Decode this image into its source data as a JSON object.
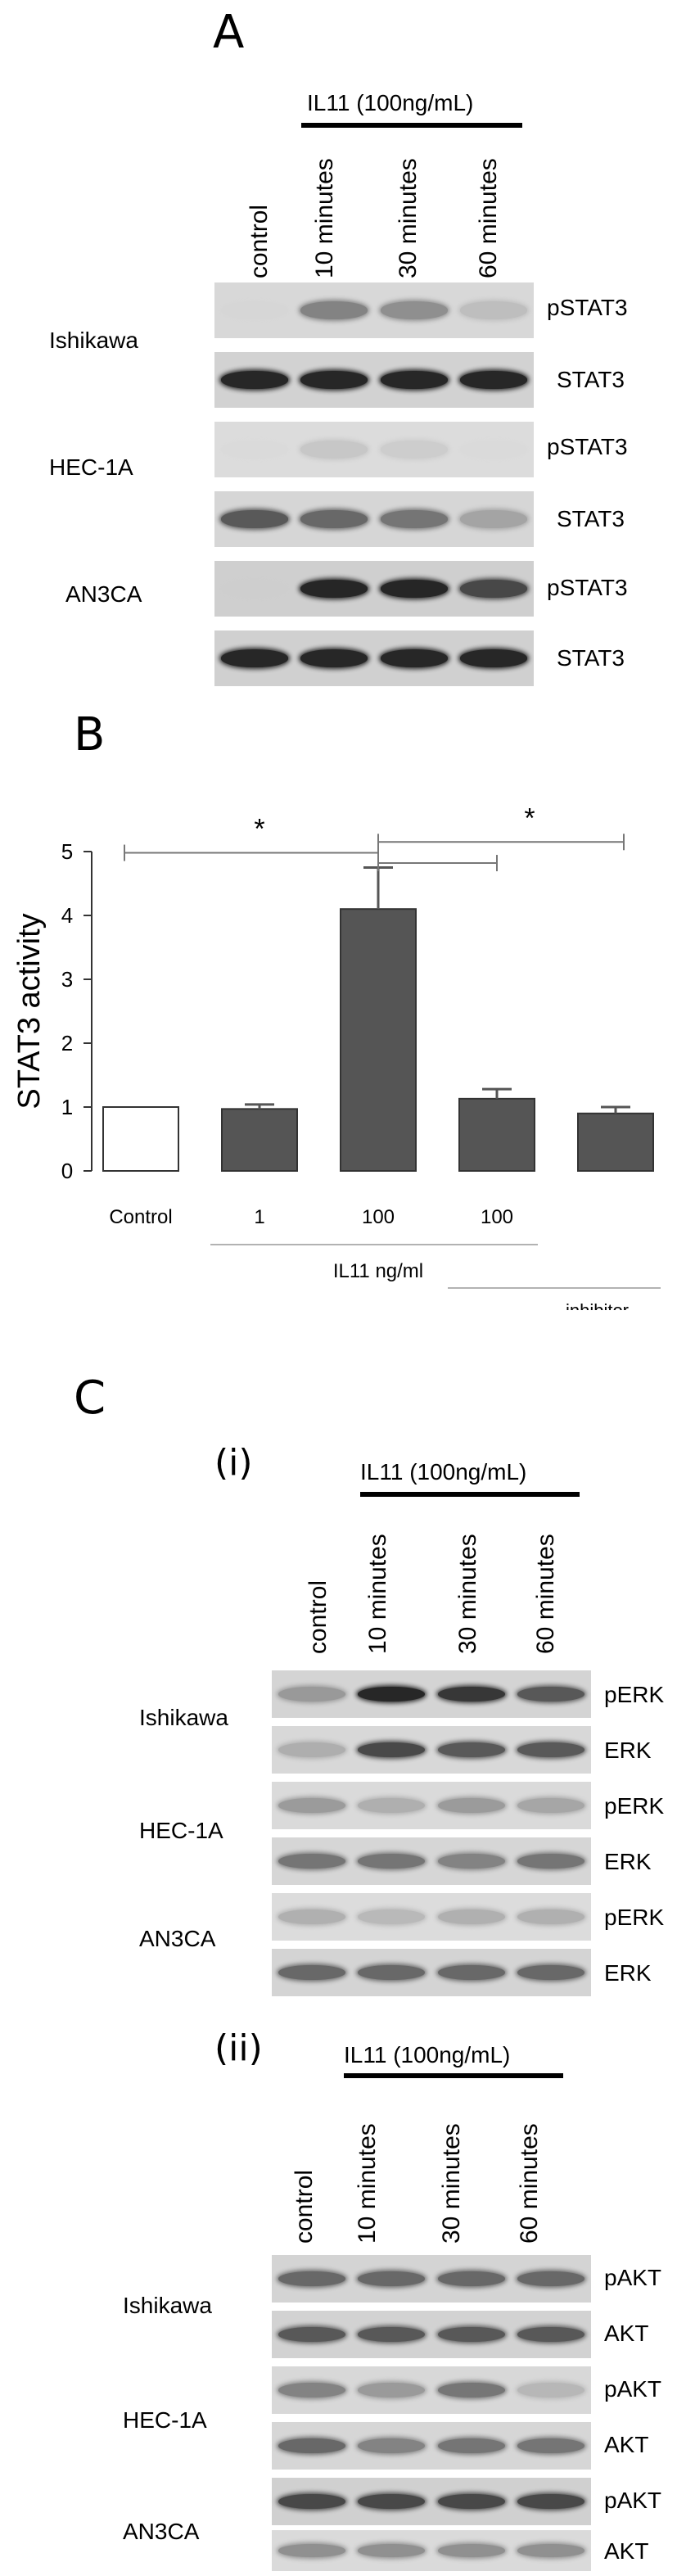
{
  "panel_a": {
    "letter": "A",
    "treatment": "IL11 (100ng/mL)",
    "lanes": [
      "control",
      "10 minutes",
      "30 minutes",
      "60 minutes"
    ],
    "cells": [
      "Ishikawa",
      "HEC-1A",
      "AN3CA"
    ],
    "blots": [
      {
        "cell": "Ishikawa",
        "protein": "pSTAT3",
        "intensity": [
          0.05,
          0.65,
          0.6,
          0.35
        ],
        "bg": "#d8d8d8"
      },
      {
        "cell": "Ishikawa",
        "protein": "STAT3",
        "intensity": [
          0.95,
          0.95,
          0.95,
          0.95
        ],
        "bg": "#d2d2d2"
      },
      {
        "cell": "HEC-1A",
        "protein": "pSTAT3",
        "intensity": [
          0.02,
          0.3,
          0.25,
          0.05
        ],
        "bg": "#dcdcdc"
      },
      {
        "cell": "HEC-1A",
        "protein": "STAT3",
        "intensity": [
          0.8,
          0.75,
          0.7,
          0.5
        ],
        "bg": "#d6d6d6"
      },
      {
        "cell": "AN3CA",
        "protein": "pSTAT3",
        "intensity": [
          0.05,
          0.95,
          0.95,
          0.85
        ],
        "bg": "#cfcfcf"
      },
      {
        "cell": "AN3CA",
        "protein": "STAT3",
        "intensity": [
          0.95,
          0.95,
          0.95,
          0.95
        ],
        "bg": "#d0d0d0"
      }
    ]
  },
  "panel_b": {
    "letter": "B",
    "significance": [
      "*",
      "*"
    ],
    "x_group_label": "IL11 ng/ml",
    "inhibitor_label": "inhibitor"
  },
  "chart_data": {
    "type": "bar",
    "categories": [
      "Control",
      "1",
      "100",
      "100",
      ""
    ],
    "values": [
      1.0,
      0.97,
      4.1,
      1.13,
      0.9
    ],
    "errors": [
      0,
      0.07,
      0.65,
      0.15,
      0.1
    ],
    "bar_colors": [
      "#ffffff",
      "#555555",
      "#555555",
      "#555555",
      "#555555"
    ],
    "ylabel": "STAT3 activity",
    "ylim": [
      0,
      5
    ],
    "yticks": [
      0,
      1,
      2,
      3,
      4,
      5
    ],
    "grid": false
  },
  "panel_c": {
    "letter": "C",
    "sub_i": {
      "label": "(i)",
      "treatment": "IL11 (100ng/mL)",
      "lanes": [
        "control",
        "10 minutes",
        "30 minutes",
        "60 minutes"
      ],
      "cells": [
        "Ishikawa",
        "HEC-1A",
        "AN3CA"
      ],
      "blots": [
        {
          "cell": "Ishikawa",
          "protein": "pERK",
          "intensity": [
            0.55,
            0.95,
            0.9,
            0.8
          ],
          "bg": "#d4d4d4"
        },
        {
          "cell": "Ishikawa",
          "protein": "ERK",
          "intensity": [
            0.45,
            0.85,
            0.8,
            0.8
          ],
          "bg": "#d8d8d8"
        },
        {
          "cell": "HEC-1A",
          "protein": "pERK",
          "intensity": [
            0.55,
            0.45,
            0.55,
            0.5
          ],
          "bg": "#dadada"
        },
        {
          "cell": "HEC-1A",
          "protein": "ERK",
          "intensity": [
            0.7,
            0.7,
            0.65,
            0.7
          ],
          "bg": "#d6d6d6"
        },
        {
          "cell": "AN3CA",
          "protein": "pERK",
          "intensity": [
            0.45,
            0.4,
            0.45,
            0.45
          ],
          "bg": "#dcdcdc"
        },
        {
          "cell": "AN3CA",
          "protein": "ERK",
          "intensity": [
            0.75,
            0.75,
            0.75,
            0.75
          ],
          "bg": "#d4d4d4"
        }
      ]
    },
    "sub_ii": {
      "label": "(ii)",
      "treatment": "IL11 (100ng/mL)",
      "lanes": [
        "control",
        "10 minutes",
        "30 minutes",
        "60 minutes"
      ],
      "cells": [
        "Ishikawa",
        "HEC-1A",
        "AN3CA"
      ],
      "blots": [
        {
          "cell": "Ishikawa",
          "protein": "pAKT",
          "intensity": [
            0.75,
            0.75,
            0.75,
            0.75
          ],
          "bg": "#d4d4d4"
        },
        {
          "cell": "Ishikawa",
          "protein": "AKT",
          "intensity": [
            0.8,
            0.8,
            0.8,
            0.8
          ],
          "bg": "#d2d2d2"
        },
        {
          "cell": "HEC-1A",
          "protein": "pAKT",
          "intensity": [
            0.65,
            0.55,
            0.7,
            0.4
          ],
          "bg": "#d8d8d8"
        },
        {
          "cell": "HEC-1A",
          "protein": "AKT",
          "intensity": [
            0.75,
            0.65,
            0.7,
            0.7
          ],
          "bg": "#d6d6d6"
        },
        {
          "cell": "AN3CA",
          "protein": "pAKT",
          "intensity": [
            0.85,
            0.85,
            0.85,
            0.85
          ],
          "bg": "#d0d0d0"
        },
        {
          "cell": "AN3CA",
          "protein": "AKT",
          "intensity": [
            0.6,
            0.6,
            0.6,
            0.6
          ],
          "bg": "#dadada"
        }
      ]
    }
  }
}
